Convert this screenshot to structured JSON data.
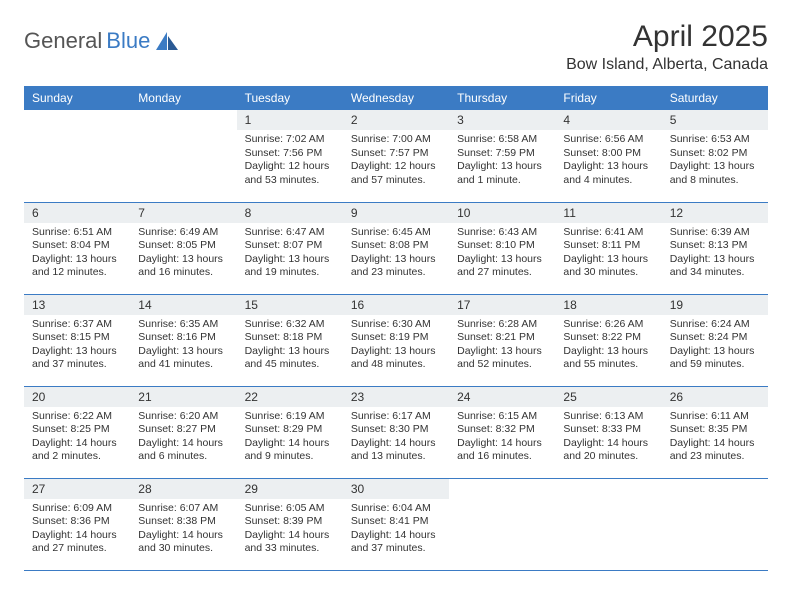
{
  "logo": {
    "text1": "General",
    "text2": "Blue"
  },
  "title": "April 2025",
  "location": "Bow Island, Alberta, Canada",
  "colors": {
    "header_bg": "#3b7bc4",
    "header_text": "#ffffff",
    "daynum_bg": "#eceff1",
    "border": "#3b7bc4",
    "page_bg": "#ffffff",
    "text": "#333333"
  },
  "weekdays": [
    "Sunday",
    "Monday",
    "Tuesday",
    "Wednesday",
    "Thursday",
    "Friday",
    "Saturday"
  ],
  "weeks": [
    [
      null,
      null,
      {
        "n": "1",
        "sr": "Sunrise: 7:02 AM",
        "ss": "Sunset: 7:56 PM",
        "dl": "Daylight: 12 hours and 53 minutes."
      },
      {
        "n": "2",
        "sr": "Sunrise: 7:00 AM",
        "ss": "Sunset: 7:57 PM",
        "dl": "Daylight: 12 hours and 57 minutes."
      },
      {
        "n": "3",
        "sr": "Sunrise: 6:58 AM",
        "ss": "Sunset: 7:59 PM",
        "dl": "Daylight: 13 hours and 1 minute."
      },
      {
        "n": "4",
        "sr": "Sunrise: 6:56 AM",
        "ss": "Sunset: 8:00 PM",
        "dl": "Daylight: 13 hours and 4 minutes."
      },
      {
        "n": "5",
        "sr": "Sunrise: 6:53 AM",
        "ss": "Sunset: 8:02 PM",
        "dl": "Daylight: 13 hours and 8 minutes."
      }
    ],
    [
      {
        "n": "6",
        "sr": "Sunrise: 6:51 AM",
        "ss": "Sunset: 8:04 PM",
        "dl": "Daylight: 13 hours and 12 minutes."
      },
      {
        "n": "7",
        "sr": "Sunrise: 6:49 AM",
        "ss": "Sunset: 8:05 PM",
        "dl": "Daylight: 13 hours and 16 minutes."
      },
      {
        "n": "8",
        "sr": "Sunrise: 6:47 AM",
        "ss": "Sunset: 8:07 PM",
        "dl": "Daylight: 13 hours and 19 minutes."
      },
      {
        "n": "9",
        "sr": "Sunrise: 6:45 AM",
        "ss": "Sunset: 8:08 PM",
        "dl": "Daylight: 13 hours and 23 minutes."
      },
      {
        "n": "10",
        "sr": "Sunrise: 6:43 AM",
        "ss": "Sunset: 8:10 PM",
        "dl": "Daylight: 13 hours and 27 minutes."
      },
      {
        "n": "11",
        "sr": "Sunrise: 6:41 AM",
        "ss": "Sunset: 8:11 PM",
        "dl": "Daylight: 13 hours and 30 minutes."
      },
      {
        "n": "12",
        "sr": "Sunrise: 6:39 AM",
        "ss": "Sunset: 8:13 PM",
        "dl": "Daylight: 13 hours and 34 minutes."
      }
    ],
    [
      {
        "n": "13",
        "sr": "Sunrise: 6:37 AM",
        "ss": "Sunset: 8:15 PM",
        "dl": "Daylight: 13 hours and 37 minutes."
      },
      {
        "n": "14",
        "sr": "Sunrise: 6:35 AM",
        "ss": "Sunset: 8:16 PM",
        "dl": "Daylight: 13 hours and 41 minutes."
      },
      {
        "n": "15",
        "sr": "Sunrise: 6:32 AM",
        "ss": "Sunset: 8:18 PM",
        "dl": "Daylight: 13 hours and 45 minutes."
      },
      {
        "n": "16",
        "sr": "Sunrise: 6:30 AM",
        "ss": "Sunset: 8:19 PM",
        "dl": "Daylight: 13 hours and 48 minutes."
      },
      {
        "n": "17",
        "sr": "Sunrise: 6:28 AM",
        "ss": "Sunset: 8:21 PM",
        "dl": "Daylight: 13 hours and 52 minutes."
      },
      {
        "n": "18",
        "sr": "Sunrise: 6:26 AM",
        "ss": "Sunset: 8:22 PM",
        "dl": "Daylight: 13 hours and 55 minutes."
      },
      {
        "n": "19",
        "sr": "Sunrise: 6:24 AM",
        "ss": "Sunset: 8:24 PM",
        "dl": "Daylight: 13 hours and 59 minutes."
      }
    ],
    [
      {
        "n": "20",
        "sr": "Sunrise: 6:22 AM",
        "ss": "Sunset: 8:25 PM",
        "dl": "Daylight: 14 hours and 2 minutes."
      },
      {
        "n": "21",
        "sr": "Sunrise: 6:20 AM",
        "ss": "Sunset: 8:27 PM",
        "dl": "Daylight: 14 hours and 6 minutes."
      },
      {
        "n": "22",
        "sr": "Sunrise: 6:19 AM",
        "ss": "Sunset: 8:29 PM",
        "dl": "Daylight: 14 hours and 9 minutes."
      },
      {
        "n": "23",
        "sr": "Sunrise: 6:17 AM",
        "ss": "Sunset: 8:30 PM",
        "dl": "Daylight: 14 hours and 13 minutes."
      },
      {
        "n": "24",
        "sr": "Sunrise: 6:15 AM",
        "ss": "Sunset: 8:32 PM",
        "dl": "Daylight: 14 hours and 16 minutes."
      },
      {
        "n": "25",
        "sr": "Sunrise: 6:13 AM",
        "ss": "Sunset: 8:33 PM",
        "dl": "Daylight: 14 hours and 20 minutes."
      },
      {
        "n": "26",
        "sr": "Sunrise: 6:11 AM",
        "ss": "Sunset: 8:35 PM",
        "dl": "Daylight: 14 hours and 23 minutes."
      }
    ],
    [
      {
        "n": "27",
        "sr": "Sunrise: 6:09 AM",
        "ss": "Sunset: 8:36 PM",
        "dl": "Daylight: 14 hours and 27 minutes."
      },
      {
        "n": "28",
        "sr": "Sunrise: 6:07 AM",
        "ss": "Sunset: 8:38 PM",
        "dl": "Daylight: 14 hours and 30 minutes."
      },
      {
        "n": "29",
        "sr": "Sunrise: 6:05 AM",
        "ss": "Sunset: 8:39 PM",
        "dl": "Daylight: 14 hours and 33 minutes."
      },
      {
        "n": "30",
        "sr": "Sunrise: 6:04 AM",
        "ss": "Sunset: 8:41 PM",
        "dl": "Daylight: 14 hours and 37 minutes."
      },
      null,
      null,
      null
    ]
  ]
}
